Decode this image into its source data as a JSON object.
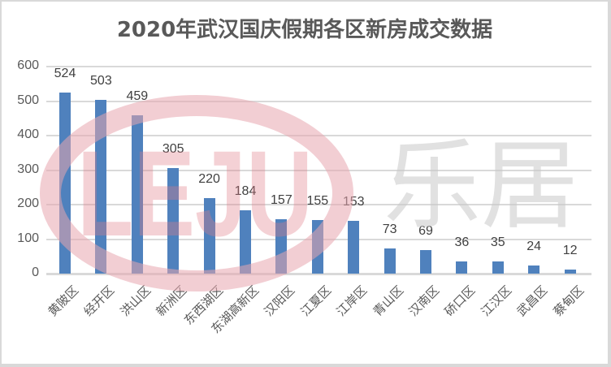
{
  "chart_data": {
    "type": "bar",
    "title": "2020年武汉国庆假期各区新房成交数据",
    "categories": [
      "黄陂区",
      "经开区",
      "洪山区",
      "新洲区",
      "东西湖区",
      "东湖高新区",
      "汉阳区",
      "江夏区",
      "江岸区",
      "青山区",
      "汉南区",
      "硚口区",
      "江汉区",
      "武昌区",
      "蔡甸区"
    ],
    "values": [
      524,
      503,
      459,
      305,
      220,
      184,
      157,
      155,
      153,
      73,
      69,
      36,
      35,
      24,
      12
    ],
    "xlabel": "",
    "ylabel": "",
    "ylim": [
      0,
      600
    ],
    "yticks": [
      0,
      100,
      200,
      300,
      400,
      500,
      600
    ],
    "grid": true,
    "legend": "none",
    "data_labels": true,
    "bar_color": "#4f81bd"
  },
  "watermark": {
    "logo_text": "LEJU",
    "brand_text": "乐居",
    "logo_color": "#e8a0a8",
    "brand_color": "#d0d0d0"
  }
}
